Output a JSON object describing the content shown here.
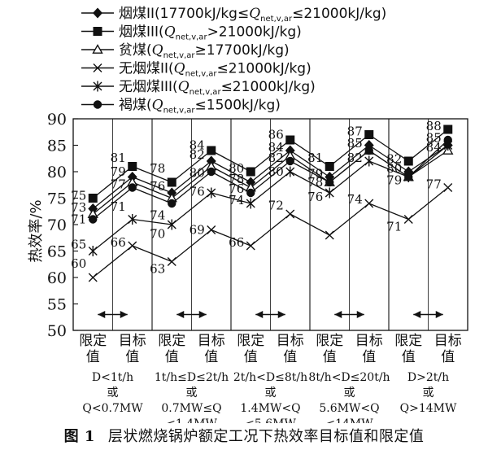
{
  "chart_data": {
    "type": "line",
    "ylabel": "热效率/%",
    "ylim": [
      50,
      90
    ],
    "yticks": [
      50,
      55,
      60,
      65,
      70,
      75,
      80,
      85,
      90
    ],
    "grid": "vertical separators between groups",
    "legend_position": "top",
    "categories": [
      "限定值",
      "目标值",
      "限定值",
      "目标值",
      "限定值",
      "目标值",
      "限定值",
      "目标值",
      "限定值",
      "目标值"
    ],
    "groups": [
      {
        "line1": "D<1t/h",
        "line2": "或",
        "line3": "Q<0.7MW",
        "line4": ""
      },
      {
        "line1": "1t/h≤D≤2t/h",
        "line2": "或",
        "line3": "0.7MW≤Q",
        "line4": "<1.4MW"
      },
      {
        "line1": "2t/h<D≤8t/h",
        "line2": "或",
        "line3": "1.4MW<Q",
        "line4": "<5.6MW"
      },
      {
        "line1": "8t/h<D≤20t/h",
        "line2": "或",
        "line3": "5.6MW<Q",
        "line4": "<14MW"
      },
      {
        "line1": "D>2t/h",
        "line2": "或",
        "line3": "Q>14MW",
        "line4": ""
      }
    ],
    "series": [
      {
        "name": "烟煤II(17700kJ/kg≤Qnet,v,ar≤21000kJ/kg)",
        "marker": "diamond",
        "values": [
          73,
          79,
          76,
          82,
          78,
          84,
          79,
          85,
          80,
          85
        ]
      },
      {
        "name": "烟煤III(Qnet,v,ar>21000kJ/kg)",
        "marker": "square",
        "values": [
          75,
          81,
          78,
          84,
          80,
          86,
          81,
          87,
          82,
          88
        ]
      },
      {
        "name": "贫煤(Qnet,v,ar≥17700kJ/kg)",
        "marker": "triangle",
        "values": [
          72,
          78,
          75,
          81,
          77,
          83,
          78,
          84,
          79,
          84
        ]
      },
      {
        "name": "无烟煤II(Qnet,v,ar≤21000kJ/kg)",
        "marker": "x",
        "values": [
          60,
          66,
          63,
          69,
          66,
          72,
          68,
          74,
          71,
          77
        ]
      },
      {
        "name": "无烟煤III(Qnet,v,ar≤21000kJ/kg)",
        "marker": "star",
        "values": [
          65,
          71,
          70,
          76,
          74,
          80,
          76,
          82,
          79,
          85
        ]
      },
      {
        "name": "褐煤(Qnet,v,ar≤1500kJ/kg)",
        "marker": "circle",
        "values": [
          71,
          77,
          74,
          80,
          76,
          82,
          78,
          84,
          79,
          86
        ]
      }
    ],
    "data_labels": [
      [
        {
          "text": "75",
          "x": 0,
          "y": 75.5
        },
        {
          "text": "73",
          "x": 0,
          "y": 73.2
        },
        {
          "text": "71",
          "x": 0,
          "y": 71.0
        },
        {
          "text": "65",
          "x": 0,
          "y": 66.2
        },
        {
          "text": "60",
          "x": 0,
          "y": 62.6
        },
        {
          "text": "81",
          "x": 1,
          "y": 82.6
        },
        {
          "text": "79",
          "x": 1,
          "y": 80.0
        },
        {
          "text": "77",
          "x": 1,
          "y": 77.6
        },
        {
          "text": "71",
          "x": 1,
          "y": 73.4
        },
        {
          "text": "66",
          "x": 1,
          "y": 66.6
        }
      ],
      [
        {
          "text": "78",
          "x": 2,
          "y": 80.6
        },
        {
          "text": "76",
          "x": 2,
          "y": 77.2
        },
        {
          "text": "74",
          "x": 2,
          "y": 71.8
        },
        {
          "text": "70",
          "x": 2,
          "y": 68.2
        },
        {
          "text": "63",
          "x": 2,
          "y": 61.6
        },
        {
          "text": "84",
          "x": 3,
          "y": 85.0
        },
        {
          "text": "82",
          "x": 3,
          "y": 83.2
        },
        {
          "text": "80",
          "x": 3,
          "y": 79.8
        },
        {
          "text": "76",
          "x": 3,
          "y": 76.2
        },
        {
          "text": "69",
          "x": 3,
          "y": 69.0
        }
      ],
      [
        {
          "text": "80",
          "x": 4,
          "y": 80.6
        },
        {
          "text": "78",
          "x": 4,
          "y": 78.6
        },
        {
          "text": "76",
          "x": 4,
          "y": 76.8
        },
        {
          "text": "74",
          "x": 4,
          "y": 74.6
        },
        {
          "text": "66",
          "x": 4,
          "y": 66.6
        },
        {
          "text": "86",
          "x": 5,
          "y": 87.0
        },
        {
          "text": "84",
          "x": 5,
          "y": 84.6
        },
        {
          "text": "82",
          "x": 5,
          "y": 82.6
        },
        {
          "text": "80",
          "x": 5,
          "y": 80.0
        },
        {
          "text": "72",
          "x": 5,
          "y": 73.6
        }
      ],
      [
        {
          "text": "81",
          "x": 6,
          "y": 82.6
        },
        {
          "text": "79",
          "x": 6,
          "y": 79.6
        },
        {
          "text": "78",
          "x": 6,
          "y": 78.0
        },
        {
          "text": "76",
          "x": 6,
          "y": 75.2
        },
        {
          "text": "87",
          "x": 7,
          "y": 87.6
        },
        {
          "text": "85",
          "x": 7,
          "y": 85.4
        },
        {
          "text": "82",
          "x": 7,
          "y": 82.6
        },
        {
          "text": "74",
          "x": 7,
          "y": 74.8
        }
      ],
      [
        {
          "text": "82",
          "x": 8,
          "y": 82.4
        },
        {
          "text": "80",
          "x": 8,
          "y": 80.6
        },
        {
          "text": "79",
          "x": 8,
          "y": 78.4
        },
        {
          "text": "71",
          "x": 8,
          "y": 69.6
        },
        {
          "text": "88",
          "x": 9,
          "y": 88.6
        },
        {
          "text": "85",
          "x": 9,
          "y": 86.4
        },
        {
          "text": "84",
          "x": 9,
          "y": 84.6
        },
        {
          "text": "77",
          "x": 9,
          "y": 77.6
        }
      ]
    ]
  },
  "legend_items": [
    {
      "prefix": "烟煤II(17700kJ/kg≤",
      "q": "Q",
      "sub": "net,v,ar",
      "suffix": "≤21000kJ/kg)"
    },
    {
      "prefix": "烟煤III(",
      "q": "Q",
      "sub": "net,v,ar",
      "suffix": ">21000kJ/kg)"
    },
    {
      "prefix": "贫煤(",
      "q": "Q",
      "sub": "net,v,ar",
      "suffix": "≥17700kJ/kg)"
    },
    {
      "prefix": "无烟煤II(",
      "q": "Q",
      "sub": "net,v,ar",
      "suffix": "≤21000kJ/kg)"
    },
    {
      "prefix": "无烟煤III(",
      "q": "Q",
      "sub": "net,v,ar",
      "suffix": "≤21000kJ/kg)"
    },
    {
      "prefix": "褐煤(",
      "q": "Q",
      "sub": "net,v,ar",
      "suffix": "≤1500kJ/kg)"
    }
  ],
  "caption": {
    "figure": "图 1",
    "text": "层状燃烧锅炉额定工况下热效率目标值和限定值"
  }
}
